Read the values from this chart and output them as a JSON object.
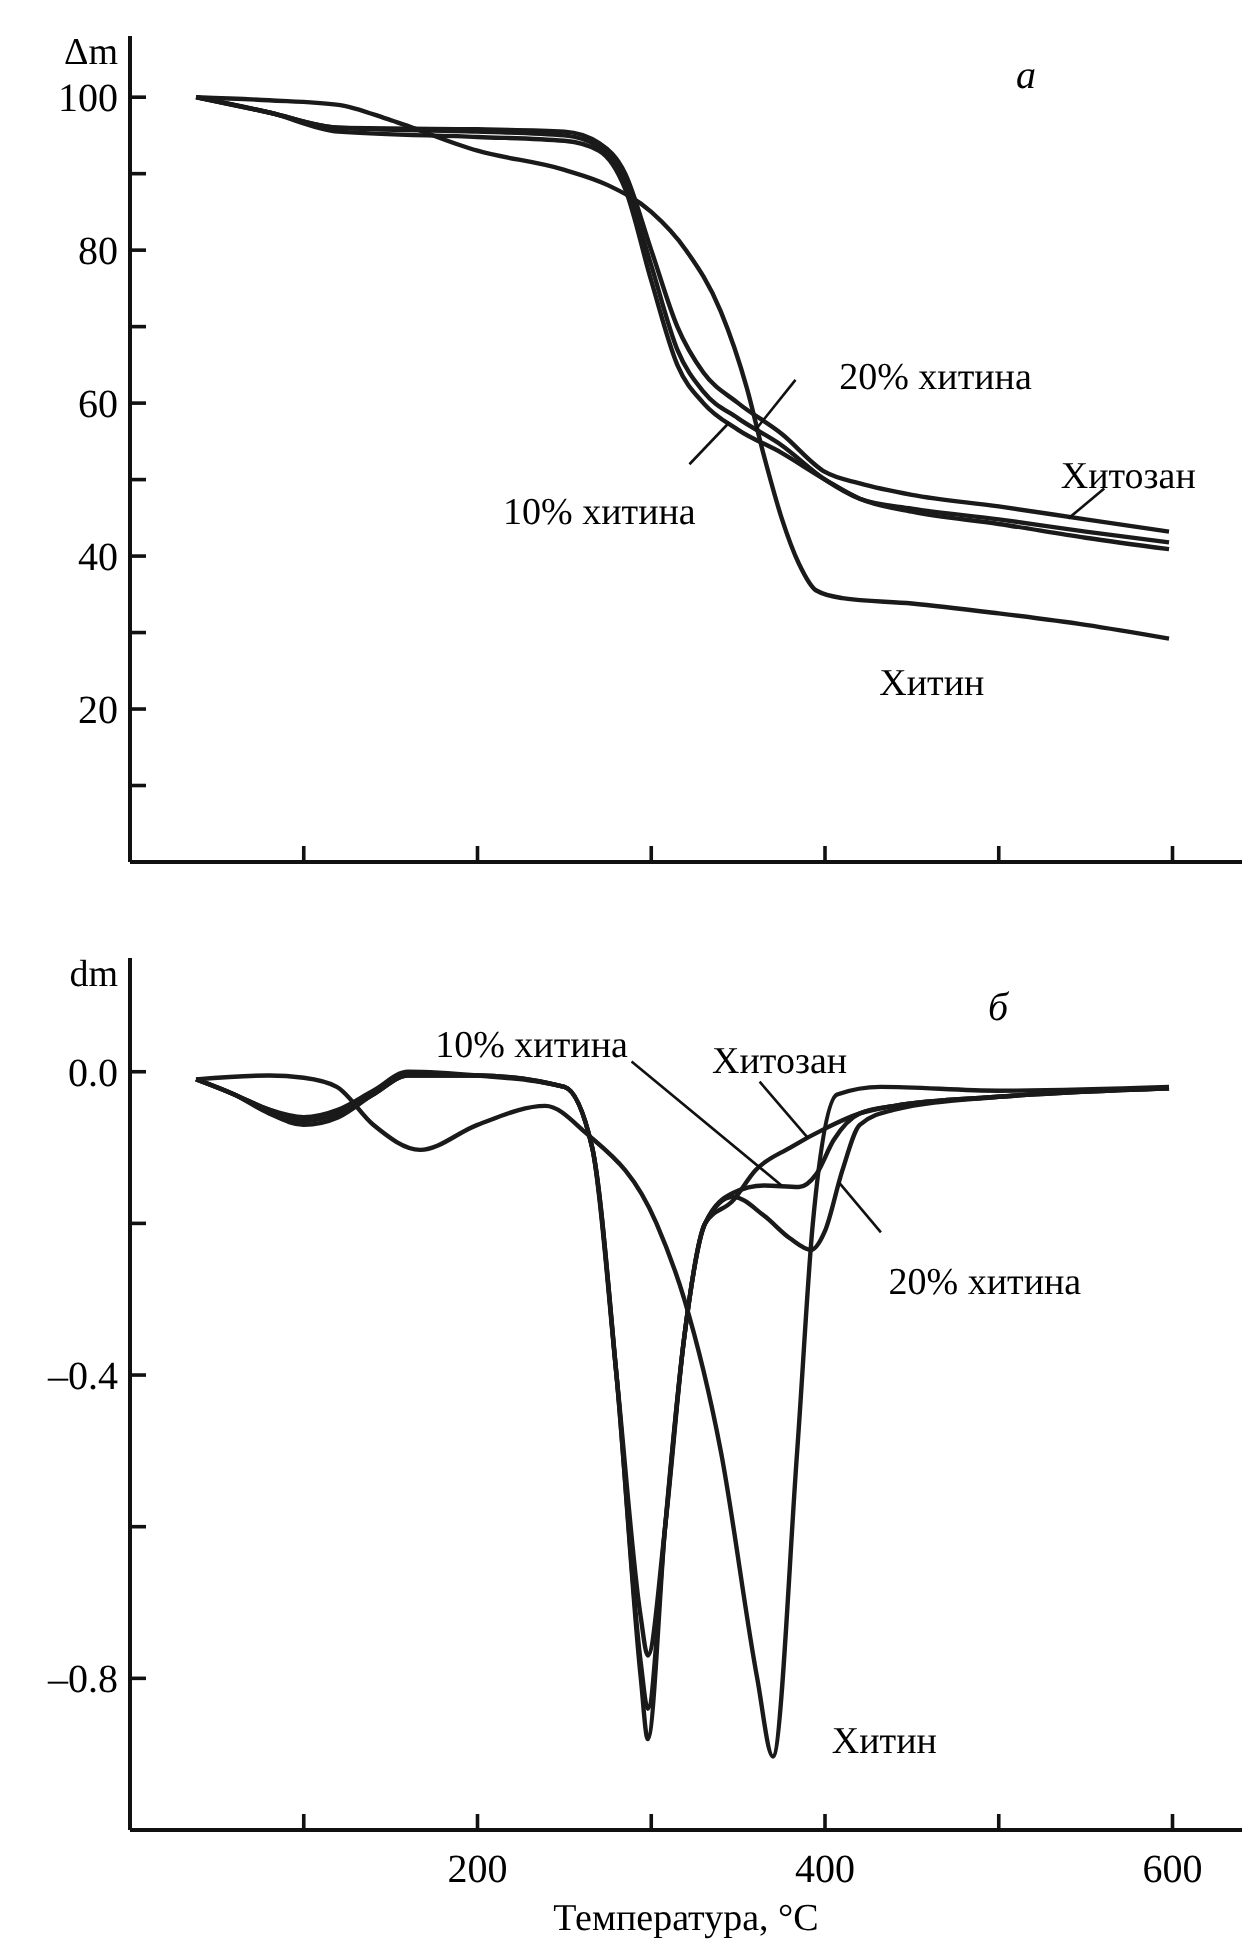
{
  "chart_data": [
    {
      "type": "line",
      "ylabel": "Δm",
      "xlim": [
        0,
        640
      ],
      "ylim": [
        0,
        108
      ],
      "tick_labels": "y",
      "grid": false,
      "marker": "none",
      "line_style": "solid",
      "annotations": [
        "а",
        {
          "text": "Хитозан",
          "x": 540,
          "y": 44.9
        },
        {
          "text": "20% хитина",
          "x": 360,
          "y": 56.5
        },
        {
          "text": "10% хитина",
          "x": 345,
          "y": 57.5
        },
        {
          "text": "Хитин",
          "x": 450,
          "y": 33.8
        }
      ],
      "xticks": [
        {
          "value": 100,
          "label": null
        },
        {
          "value": 200,
          "label": null
        },
        {
          "value": 300,
          "label": null
        },
        {
          "value": 400,
          "label": null
        },
        {
          "value": 500,
          "label": null
        },
        {
          "value": 600,
          "label": null
        }
      ],
      "yticks": [
        {
          "value": 10,
          "label": null
        },
        20,
        {
          "value": 30,
          "label": null
        },
        40,
        {
          "value": 50,
          "label": null
        },
        60,
        {
          "value": 70,
          "label": null
        },
        80,
        {
          "value": 90,
          "label": null
        },
        100
      ],
      "series": [
        {
          "color": "#1a1a1a",
          "x": [
            38,
            80,
            120,
            200,
            250,
            270,
            285,
            300,
            315,
            330,
            350,
            375,
            400,
            420,
            450,
            500,
            550,
            598
          ],
          "values": [
            100,
            98,
            96,
            95.8,
            95.5,
            94,
            90,
            80,
            70,
            64,
            60,
            56,
            51,
            49.5,
            48,
            46.5,
            44.8,
            43.2
          ]
        },
        {
          "color": "#1a1a1a",
          "x": [
            40,
            80,
            120,
            200,
            250,
            270,
            285,
            300,
            315,
            330,
            350,
            375,
            400,
            420,
            450,
            500,
            550,
            598
          ],
          "values": [
            99.9,
            98,
            96,
            95.5,
            95,
            93.5,
            89,
            78,
            67,
            61.5,
            58,
            54.5,
            50,
            47.5,
            46.2,
            44.8,
            43.2,
            41.8
          ]
        },
        {
          "color": "#1a1a1a",
          "x": [
            38,
            80,
            120,
            200,
            250,
            270,
            285,
            300,
            315,
            330,
            350,
            375,
            400,
            420,
            450,
            500,
            550,
            598
          ],
          "values": [
            100,
            98,
            95.5,
            94.8,
            94.3,
            93,
            88,
            76,
            65,
            60,
            56.5,
            53.5,
            50,
            47.5,
            45.8,
            44.2,
            42.4,
            40.9
          ]
        },
        {
          "color": "#1a1a1a",
          "x": [
            38,
            80,
            120,
            150,
            200,
            250,
            275,
            300,
            320,
            340,
            355,
            365,
            375,
            385,
            395,
            410,
            450,
            500,
            550,
            598
          ],
          "values": [
            100,
            99.6,
            99,
            97,
            93,
            90.5,
            88.5,
            85,
            80,
            72,
            62,
            53,
            45,
            39,
            35.5,
            34.5,
            33.8,
            32.5,
            31,
            29.2
          ]
        }
      ]
    },
    {
      "type": "line",
      "ylabel": "dm",
      "xlabel": "Температура, °C",
      "xlim": [
        0,
        640
      ],
      "ylim": [
        -1,
        0.15
      ],
      "grid": false,
      "marker": "none",
      "line_style": "solid",
      "annotations": [
        "б",
        {
          "text": "Хитозан",
          "x": 390,
          "y": -0.087
        },
        {
          "text": "10% хитина",
          "x": 375,
          "y": -0.15
        },
        {
          "text": "20% хитина",
          "x": 408,
          "y": -0.146
        },
        {
          "text": "Хитин",
          "x": 372,
          "y": -0.9
        }
      ],
      "xticks": [
        {
          "value": 100,
          "label": null
        },
        200,
        {
          "value": 300,
          "label": null
        },
        400,
        {
          "value": 500,
          "label": null
        },
        600
      ],
      "yticks": [
        {
          "value": -0.8,
          "label": "–0.8"
        },
        {
          "value": -0.6,
          "label": null
        },
        {
          "value": -0.4,
          "label": "–0.4"
        },
        {
          "value": -0.2,
          "label": null
        },
        {
          "value": 0,
          "label": "0.0"
        }
      ],
      "series": [
        {
          "color": "#1a1a1a",
          "x": [
            38,
            60,
            80,
            100,
            120,
            140,
            160,
            200,
            250,
            266,
            280,
            294,
            298,
            308,
            319,
            331,
            347,
            360,
            380,
            400,
            420,
            440,
            500,
            598
          ],
          "values": [
            -0.01,
            -0.03,
            -0.055,
            -0.07,
            -0.06,
            -0.03,
            -0.005,
            -0.005,
            -0.02,
            -0.1,
            -0.4,
            -0.8,
            -0.88,
            -0.6,
            -0.35,
            -0.2,
            -0.17,
            -0.13,
            -0.1,
            -0.075,
            -0.055,
            -0.045,
            -0.033,
            -0.022
          ]
        },
        {
          "color": "#1a1a1a",
          "x": [
            38,
            60,
            80,
            100,
            120,
            140,
            160,
            200,
            250,
            266,
            280,
            294,
            298,
            308,
            319,
            331,
            347,
            365,
            385,
            395,
            405,
            420,
            440,
            500,
            598
          ],
          "values": [
            -0.01,
            -0.03,
            -0.05,
            -0.065,
            -0.055,
            -0.03,
            -0.005,
            -0.005,
            -0.02,
            -0.1,
            -0.4,
            -0.78,
            -0.84,
            -0.6,
            -0.35,
            -0.2,
            -0.16,
            -0.15,
            -0.152,
            -0.135,
            -0.09,
            -0.055,
            -0.045,
            -0.033,
            -0.022
          ]
        },
        {
          "color": "#1a1a1a",
          "x": [
            38,
            60,
            80,
            100,
            120,
            140,
            160,
            200,
            250,
            266,
            280,
            294,
            298,
            308,
            319,
            331,
            347,
            365,
            380,
            392,
            400,
            410,
            420,
            440,
            500,
            598
          ],
          "values": [
            -0.01,
            -0.03,
            -0.05,
            -0.06,
            -0.05,
            -0.025,
            0,
            -0.005,
            -0.02,
            -0.1,
            -0.4,
            -0.72,
            -0.77,
            -0.6,
            -0.35,
            -0.2,
            -0.165,
            -0.19,
            -0.22,
            -0.235,
            -0.21,
            -0.13,
            -0.07,
            -0.05,
            -0.033,
            -0.022
          ]
        },
        {
          "color": "#1a1a1a",
          "x": [
            38,
            80,
            100,
            119,
            140,
            167,
            200,
            239,
            262,
            303,
            319,
            340,
            361,
            370,
            384,
            393,
            407,
            432,
            500,
            598
          ],
          "values": [
            -0.01,
            -0.005,
            -0.008,
            -0.02,
            -0.07,
            -0.103,
            -0.07,
            -0.045,
            -0.08,
            -0.2,
            -0.3,
            -0.5,
            -0.8,
            -0.903,
            -0.5,
            -0.2,
            -0.03,
            -0.02,
            -0.025,
            -0.02
          ]
        }
      ]
    }
  ]
}
